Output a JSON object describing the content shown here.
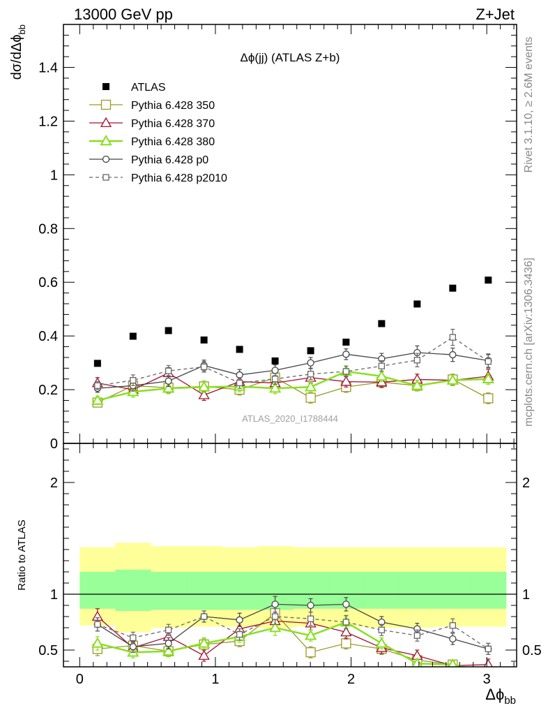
{
  "header": {
    "left": "13000 GeV pp",
    "right": "Z+Jet"
  },
  "side_labels": {
    "rivet": "Rivet 3.1.10, ≥ 2.6M events",
    "mcplots": "mcplots.cern.ch [arXiv:1306.3436]"
  },
  "chart_data": [
    {
      "type": "scatter",
      "title": "Δϕ(jj) (ATLAS Z+b)",
      "watermark": "ATLAS_2020_I1788444",
      "ylabel": "dσ/dΔϕ_bb",
      "xlim": [
        -0.12,
        3.22
      ],
      "ylim": [
        0,
        1.56
      ],
      "yticks": [
        0,
        0.2,
        0.4,
        0.6,
        0.8,
        1,
        1.2,
        1.4
      ],
      "ytick_labels": [
        "0",
        "0.2",
        "0.4",
        "0.6",
        "0.8",
        "1",
        "1.2",
        "1.4"
      ],
      "x": [
        0.131,
        0.393,
        0.654,
        0.916,
        1.178,
        1.44,
        1.702,
        1.963,
        2.225,
        2.487,
        2.749,
        3.011
      ],
      "bin_edges": [
        0,
        0.262,
        0.524,
        0.785,
        1.047,
        1.309,
        1.571,
        1.833,
        2.094,
        2.356,
        2.618,
        2.88,
        3.142
      ],
      "series": [
        {
          "name": "ATLAS",
          "style": "data",
          "color": "#000000",
          "values": [
            0.298,
            0.399,
            0.42,
            0.385,
            0.35,
            0.307,
            0.345,
            0.377,
            0.446,
            0.519,
            0.578,
            0.608
          ]
        },
        {
          "name": "Pythia 6.428 350",
          "style": "square-open",
          "color": "#9a9a28",
          "values": [
            0.152,
            0.215,
            0.207,
            0.212,
            0.2,
            0.245,
            0.17,
            0.21,
            0.228,
            0.215,
            0.238,
            0.168
          ],
          "errors": [
            0.015,
            0.02,
            0.02,
            0.02,
            0.02,
            0.025,
            0.02,
            0.02,
            0.02,
            0.02,
            0.02,
            0.02
          ]
        },
        {
          "name": "Pythia 6.428 370",
          "style": "triangle-open",
          "color": "#a01030",
          "values": [
            0.225,
            0.2,
            0.262,
            0.18,
            0.23,
            0.225,
            0.245,
            0.23,
            0.228,
            0.238,
            0.235,
            0.25
          ],
          "errors": [
            0.02,
            0.02,
            0.02,
            0.02,
            0.02,
            0.025,
            0.02,
            0.02,
            0.02,
            0.02,
            0.02,
            0.025
          ]
        },
        {
          "name": "Pythia 6.428 380",
          "style": "triangle-open-thick",
          "color": "#88e020",
          "values": [
            0.16,
            0.192,
            0.205,
            0.21,
            0.212,
            0.205,
            0.21,
            0.268,
            0.25,
            0.215,
            0.235,
            0.24
          ],
          "errors": [
            0.015,
            0.02,
            0.02,
            0.02,
            0.02,
            0.02,
            0.02,
            0.02,
            0.02,
            0.02,
            0.02,
            0.02
          ]
        },
        {
          "name": "Pythia 6.428 p0",
          "style": "circle-open",
          "color": "#444444",
          "values": [
            0.205,
            0.215,
            0.232,
            0.29,
            0.255,
            0.272,
            0.3,
            0.332,
            0.315,
            0.338,
            0.33,
            0.308
          ],
          "errors": [
            0.015,
            0.02,
            0.02,
            0.02,
            0.02,
            0.02,
            0.02,
            0.02,
            0.02,
            0.025,
            0.025,
            0.025
          ]
        },
        {
          "name": "Pythia 6.428 p2010",
          "style": "square-open-dashed",
          "color": "#666666",
          "values": [
            0.215,
            0.235,
            0.27,
            0.285,
            0.225,
            0.24,
            0.258,
            0.268,
            0.288,
            0.31,
            0.395,
            0.305
          ],
          "errors": [
            0.015,
            0.02,
            0.02,
            0.02,
            0.02,
            0.02,
            0.02,
            0.02,
            0.02,
            0.025,
            0.03,
            0.025
          ]
        }
      ]
    },
    {
      "type": "scatter",
      "title": "",
      "xlabel": "Δϕ_bb",
      "ylabel": "Ratio to ATLAS",
      "xlim": [
        -0.12,
        3.22
      ],
      "ylim": [
        0.35,
        2.35
      ],
      "xticks": [
        0,
        1,
        2,
        3
      ],
      "xtick_labels": [
        "0",
        "1",
        "2",
        "3"
      ],
      "yticks": [
        0.5,
        1,
        2
      ],
      "ytick_labels": [
        "0.5",
        "1",
        "2"
      ],
      "x": [
        0.131,
        0.393,
        0.654,
        0.916,
        1.178,
        1.44,
        1.702,
        1.963,
        2.225,
        2.487,
        2.749,
        3.011
      ],
      "bin_edges": [
        0,
        0.262,
        0.524,
        0.785,
        1.047,
        1.309,
        1.571,
        1.833,
        2.094,
        2.356,
        2.618,
        2.88,
        3.142
      ],
      "bands": {
        "outer": {
          "color": "#ffff99",
          "low": [
            0.72,
            0.66,
            0.7,
            0.71,
            0.71,
            0.7,
            0.71,
            0.71,
            0.7,
            0.7,
            0.71,
            0.71
          ],
          "high": [
            1.42,
            1.46,
            1.43,
            1.43,
            1.42,
            1.43,
            1.42,
            1.42,
            1.42,
            1.42,
            1.42,
            1.42
          ]
        },
        "inner": {
          "color": "#99ff99",
          "low": [
            0.87,
            0.85,
            0.86,
            0.86,
            0.86,
            0.86,
            0.87,
            0.87,
            0.87,
            0.87,
            0.87,
            0.87
          ],
          "high": [
            1.2,
            1.22,
            1.2,
            1.2,
            1.2,
            1.2,
            1.2,
            1.2,
            1.2,
            1.2,
            1.2,
            1.2
          ]
        }
      },
      "series": [
        {
          "name": "Pythia 6.428 350",
          "style": "square-open",
          "color": "#9a9a28",
          "values": [
            0.51,
            0.54,
            0.49,
            0.55,
            0.58,
            0.83,
            0.48,
            0.56,
            0.51,
            0.41,
            0.37,
            0.28
          ],
          "errors": [
            0.06,
            0.05,
            0.05,
            0.05,
            0.05,
            0.07,
            0.05,
            0.05,
            0.05,
            0.04,
            0.04,
            0.04
          ]
        },
        {
          "name": "Pythia 6.428 370",
          "style": "triangle-open",
          "color": "#a01030",
          "values": [
            0.8,
            0.52,
            0.62,
            0.45,
            0.69,
            0.76,
            0.74,
            0.66,
            0.52,
            0.45,
            0.36,
            0.37
          ],
          "errors": [
            0.07,
            0.05,
            0.05,
            0.05,
            0.06,
            0.08,
            0.06,
            0.06,
            0.05,
            0.05,
            0.04,
            0.05
          ]
        },
        {
          "name": "Pythia 6.428 380",
          "style": "triangle-open-thick",
          "color": "#88e020",
          "values": [
            0.56,
            0.48,
            0.49,
            0.56,
            0.62,
            0.7,
            0.63,
            0.75,
            0.56,
            0.38,
            0.37,
            0.3
          ],
          "errors": [
            0.06,
            0.05,
            0.05,
            0.05,
            0.05,
            0.07,
            0.05,
            0.05,
            0.05,
            0.04,
            0.04,
            0.04
          ]
        },
        {
          "name": "Pythia 6.428 p0",
          "style": "circle-open",
          "color": "#444444",
          "values": [
            0.73,
            0.53,
            0.56,
            0.8,
            0.77,
            0.91,
            0.9,
            0.91,
            0.75,
            0.69,
            0.6,
            0.51
          ],
          "errors": [
            0.06,
            0.05,
            0.05,
            0.05,
            0.06,
            0.07,
            0.06,
            0.06,
            0.05,
            0.05,
            0.05,
            0.05
          ]
        },
        {
          "name": "Pythia 6.428 p2010",
          "style": "square-open-dashed",
          "color": "#666666",
          "values": [
            0.73,
            0.61,
            0.68,
            0.8,
            0.64,
            0.8,
            0.78,
            0.75,
            0.68,
            0.63,
            0.72,
            0.51
          ],
          "errors": [
            0.06,
            0.05,
            0.05,
            0.05,
            0.05,
            0.07,
            0.06,
            0.06,
            0.05,
            0.05,
            0.06,
            0.05
          ]
        }
      ]
    }
  ]
}
